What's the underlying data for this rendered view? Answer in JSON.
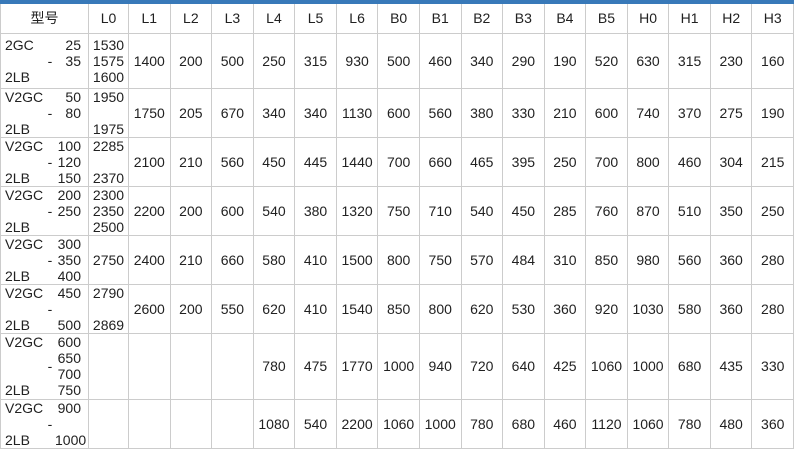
{
  "page": {
    "accent_bar_color": "#3879b9",
    "border_color": "#cccccc",
    "text_color": "#212121",
    "background": "#ffffff"
  },
  "chart_data": {
    "type": "table",
    "title": "",
    "model_header": "型号",
    "columns": [
      "L0",
      "L1",
      "L2",
      "L3",
      "L4",
      "L5",
      "L6",
      "B0",
      "B1",
      "B2",
      "B3",
      "B4",
      "B5",
      "H0",
      "H1",
      "H2",
      "H3"
    ],
    "rows": [
      {
        "model_lines": [
          [
            "2GC",
            "",
            "25"
          ],
          [
            "",
            "-",
            "35"
          ],
          [
            "2LB",
            "",
            ""
          ]
        ],
        "l0_lines": [
          "1530",
          "1575",
          "1600"
        ],
        "values": [
          "1400",
          "200",
          "500",
          "250",
          "315",
          "930",
          "500",
          "460",
          "340",
          "290",
          "190",
          "520",
          "630",
          "315",
          "230",
          "160"
        ]
      },
      {
        "model_lines": [
          [
            "V2GC",
            "",
            "50"
          ],
          [
            "",
            "-",
            "80"
          ],
          [
            "2LB",
            "",
            ""
          ]
        ],
        "l0_lines": [
          "1950",
          "",
          "1975"
        ],
        "values": [
          "1750",
          "205",
          "670",
          "340",
          "340",
          "1130",
          "600",
          "560",
          "380",
          "330",
          "210",
          "600",
          "740",
          "370",
          "275",
          "190"
        ]
      },
      {
        "model_lines": [
          [
            "V2GC",
            "",
            "100"
          ],
          [
            "",
            "-",
            "120"
          ],
          [
            "2LB",
            "",
            "150"
          ]
        ],
        "l0_lines": [
          "2285",
          "",
          "2370"
        ],
        "values": [
          "2100",
          "210",
          "560",
          "450",
          "445",
          "1440",
          "700",
          "660",
          "465",
          "395",
          "250",
          "700",
          "800",
          "460",
          "304",
          "215"
        ]
      },
      {
        "model_lines": [
          [
            "V2GC",
            "",
            "200"
          ],
          [
            "",
            "-",
            "250"
          ],
          [
            "2LB",
            "",
            ""
          ]
        ],
        "l0_lines": [
          "2300",
          "2350",
          "2500"
        ],
        "values": [
          "2200",
          "200",
          "600",
          "540",
          "380",
          "1320",
          "750",
          "710",
          "540",
          "450",
          "285",
          "760",
          "870",
          "510",
          "350",
          "250"
        ]
      },
      {
        "model_lines": [
          [
            "V2GC",
            "",
            "300"
          ],
          [
            "",
            "-",
            "350"
          ],
          [
            "2LB",
            "",
            "400"
          ]
        ],
        "l0_lines": [
          "",
          "2750",
          ""
        ],
        "values": [
          "2400",
          "210",
          "660",
          "580",
          "410",
          "1500",
          "800",
          "750",
          "570",
          "484",
          "310",
          "850",
          "980",
          "560",
          "360",
          "280"
        ]
      },
      {
        "model_lines": [
          [
            "V2GC",
            "",
            "450"
          ],
          [
            "",
            "-",
            ""
          ],
          [
            "2LB",
            "",
            "500"
          ]
        ],
        "l0_lines": [
          "2790",
          "",
          "2869"
        ],
        "values": [
          "2600",
          "200",
          "550",
          "620",
          "410",
          "1540",
          "850",
          "800",
          "620",
          "530",
          "360",
          "920",
          "1030",
          "580",
          "360",
          "280"
        ]
      },
      {
        "model_lines": [
          [
            "V2GC",
            "",
            "600"
          ],
          [
            "",
            "",
            "650"
          ],
          [
            "",
            "-",
            "700"
          ],
          [
            "2LB",
            "",
            "750"
          ]
        ],
        "l0_lines": [
          "",
          "",
          "",
          ""
        ],
        "values": [
          "",
          "",
          "",
          "780",
          "475",
          "1770",
          "1000",
          "940",
          "720",
          "640",
          "425",
          "1060",
          "1000",
          "680",
          "435",
          "330"
        ]
      },
      {
        "model_lines": [
          [
            "V2GC",
            "",
            "900"
          ],
          [
            "",
            "-",
            ""
          ],
          [
            "2LB",
            "",
            "1000"
          ]
        ],
        "l0_lines": [
          "",
          "",
          ""
        ],
        "values": [
          "",
          "",
          "",
          "1080",
          "540",
          "2200",
          "1060",
          "1000",
          "780",
          "680",
          "460",
          "1120",
          "1060",
          "780",
          "480",
          "360"
        ]
      }
    ]
  }
}
